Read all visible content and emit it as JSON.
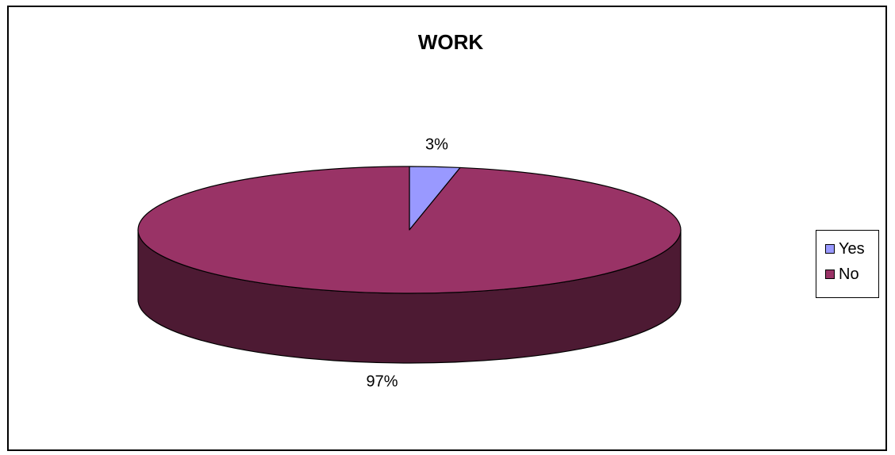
{
  "chart_data": {
    "type": "pie",
    "title": "WORK",
    "categories": [
      "Yes",
      "No"
    ],
    "values": [
      3,
      97
    ],
    "data_labels": [
      "3%",
      "97%"
    ],
    "colors": [
      "#9999ff",
      "#993366"
    ],
    "side_colors": [
      "#4d4d80",
      "#4d1a33"
    ],
    "style": "3d",
    "legend_position": "right"
  }
}
